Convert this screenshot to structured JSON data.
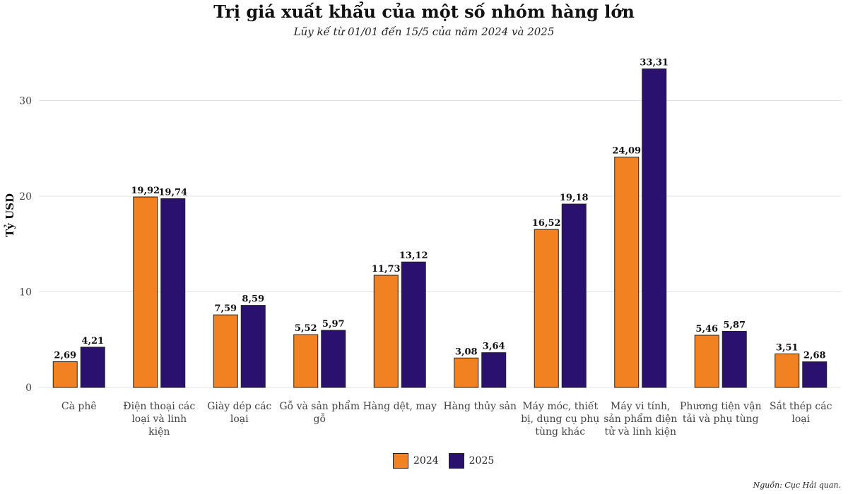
{
  "title": "Trị giá xuất khẩu của một số nhóm hàng lớn",
  "subtitle": "Lũy kế từ 01/01 đến 15/5 của năm 2024 và 2025",
  "source": "Nguồn: Cục Hải quan.",
  "colors": {
    "2024": "#F28121",
    "2025": "#2A1170"
  },
  "chart_data": {
    "type": "bar",
    "title": "Trị giá xuất khẩu của một số nhóm hàng lớn",
    "subtitle": "Lũy kế từ 01/01 đến 15/5 của năm 2024 và 2025",
    "ylabel": "Tỷ USD",
    "xlabel": "",
    "ylim": [
      0,
      35
    ],
    "yticks": [
      "0",
      "10",
      "20",
      "30"
    ],
    "grid": true,
    "legend_position": "bottom",
    "categories": [
      [
        "Cà phê"
      ],
      [
        "Điện thoại các",
        "loại và linh",
        "kiện"
      ],
      [
        "Giày dép các",
        "loại"
      ],
      [
        "Gỗ và sản phẩm",
        "gỗ"
      ],
      [
        "Hàng dệt, may"
      ],
      [
        "Hàng thủy sản"
      ],
      [
        "Máy móc, thiết",
        "bị, dụng cụ phụ",
        "tùng khác"
      ],
      [
        "Máy vi tính,",
        "sản phẩm điện",
        "tử và linh kiện"
      ],
      [
        "Phương tiện vận",
        "tải và phụ tùng"
      ],
      [
        "Sắt thép các",
        "loại"
      ]
    ],
    "series": [
      {
        "name": "2024",
        "values": [
          2.69,
          19.92,
          7.59,
          5.52,
          11.73,
          3.08,
          16.52,
          24.09,
          5.46,
          3.51
        ],
        "labels": [
          "2,69",
          "19,92",
          "7,59",
          "5,52",
          "11,73",
          "3,08",
          "16,52",
          "24,09",
          "5,46",
          "3,51"
        ]
      },
      {
        "name": "2025",
        "values": [
          4.21,
          19.74,
          8.59,
          5.97,
          13.12,
          3.64,
          19.18,
          33.31,
          5.87,
          2.68
        ],
        "labels": [
          "4,21",
          "19,74",
          "8,59",
          "5,97",
          "13,12",
          "3,64",
          "19,18",
          "33,31",
          "5,87",
          "2,68"
        ]
      }
    ]
  }
}
